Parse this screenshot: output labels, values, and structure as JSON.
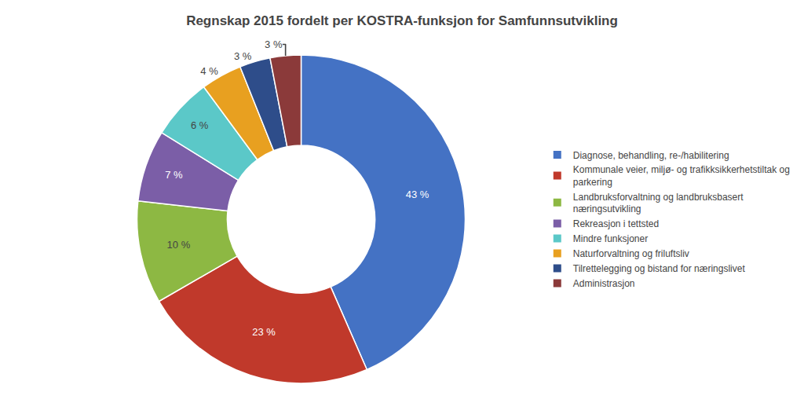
{
  "chart_data": {
    "type": "donut",
    "title": "Regnskap 2015 fordelt per KOSTRA-funksjon for Samfunnsutvikling",
    "categories": [
      "Diagnose, behandling, re-/habilitering",
      "Kommunale veier, miljø- og trafikksikkerhetstiltak og\nparkering",
      "Landbruksforvaltning og landbruksbasert\nnæringsutvikling",
      "Rekreasjon i tettsted",
      "Mindre funksjoner",
      "Naturforvaltning og friluftsliv",
      "Tilrettelegging og bistand for næringslivet",
      "Administrasjon"
    ],
    "values": [
      43,
      23,
      10,
      7,
      6,
      4,
      3,
      3
    ],
    "value_labels": [
      "43 %",
      "23 %",
      "10 %",
      "7 %",
      "6 %",
      "4 %",
      "3 %",
      "3 %"
    ],
    "colors": [
      "#4472C4",
      "#C0392B",
      "#8DB843",
      "#7B5EA7",
      "#5BC8C8",
      "#E8A020",
      "#2E4D8A",
      "#8B3A3A"
    ],
    "data_labels": true,
    "legend": "right"
  }
}
